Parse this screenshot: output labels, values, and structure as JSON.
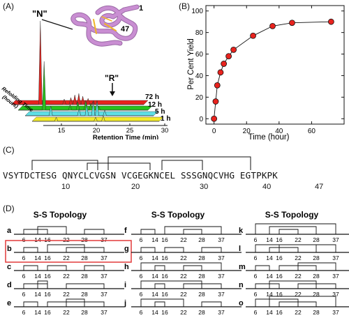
{
  "panels": {
    "a": "(A)",
    "b": "(B)",
    "c": "(C)",
    "d": "(D)"
  },
  "panelA": {
    "native_label": "\"N\"",
    "reduced_label": "\"R\"",
    "residue_start": "1",
    "residue_end": "47",
    "traces": [
      {
        "label": "72 h",
        "color": "#e8231e"
      },
      {
        "label": "12 h",
        "color": "#27c21d"
      },
      {
        "label": "5 h",
        "color": "#5fe0e6"
      },
      {
        "label": "1 h",
        "color": "#f2ea2c"
      }
    ],
    "x_ticks": [
      "15",
      "20",
      "25",
      "30"
    ],
    "xlabel": "Retention Time (min)",
    "zlabel_line1": "Refolding Time",
    "zlabel_line2": "(hours)",
    "structure_color": "#c98ed2",
    "disulfide_color": "#f0b428"
  },
  "chart_data": {
    "type": "line",
    "xlabel": "Time (hour)",
    "ylabel": "Per Cent Yield",
    "xlim": [
      -5,
      80
    ],
    "ylim": [
      -5,
      105
    ],
    "x_ticks": [
      "0",
      "20",
      "40",
      "60"
    ],
    "y_ticks": [
      "0",
      "20",
      "40",
      "60",
      "80",
      "100"
    ],
    "series": [
      {
        "x": [
          0,
          1,
          2,
          4,
          6,
          9,
          12,
          24,
          36,
          48,
          72
        ],
        "y": [
          0,
          16,
          31,
          43,
          51,
          58,
          64,
          77,
          86,
          89,
          90
        ],
        "color": "#e8231e"
      }
    ],
    "grid": false
  },
  "panelC": {
    "sequence": "VSYTDCTESG QNYCLCVGSN VCGEGKNCEL SSSGNQCVHG EGTPKPK",
    "numbers": [
      "10",
      "20",
      "30",
      "40",
      "47"
    ]
  },
  "panelD": {
    "title": "S-S Topology",
    "ticks": [
      "6",
      "14",
      "16",
      "22",
      "28",
      "37"
    ],
    "columns": [
      [
        "a",
        "b",
        "c",
        "d",
        "e"
      ],
      [
        "f",
        "g",
        "h",
        "i",
        "j"
      ],
      [
        "k",
        "l",
        "m",
        "n",
        "o"
      ]
    ],
    "highlight": "b",
    "highlight_color": "#e23a3a"
  }
}
